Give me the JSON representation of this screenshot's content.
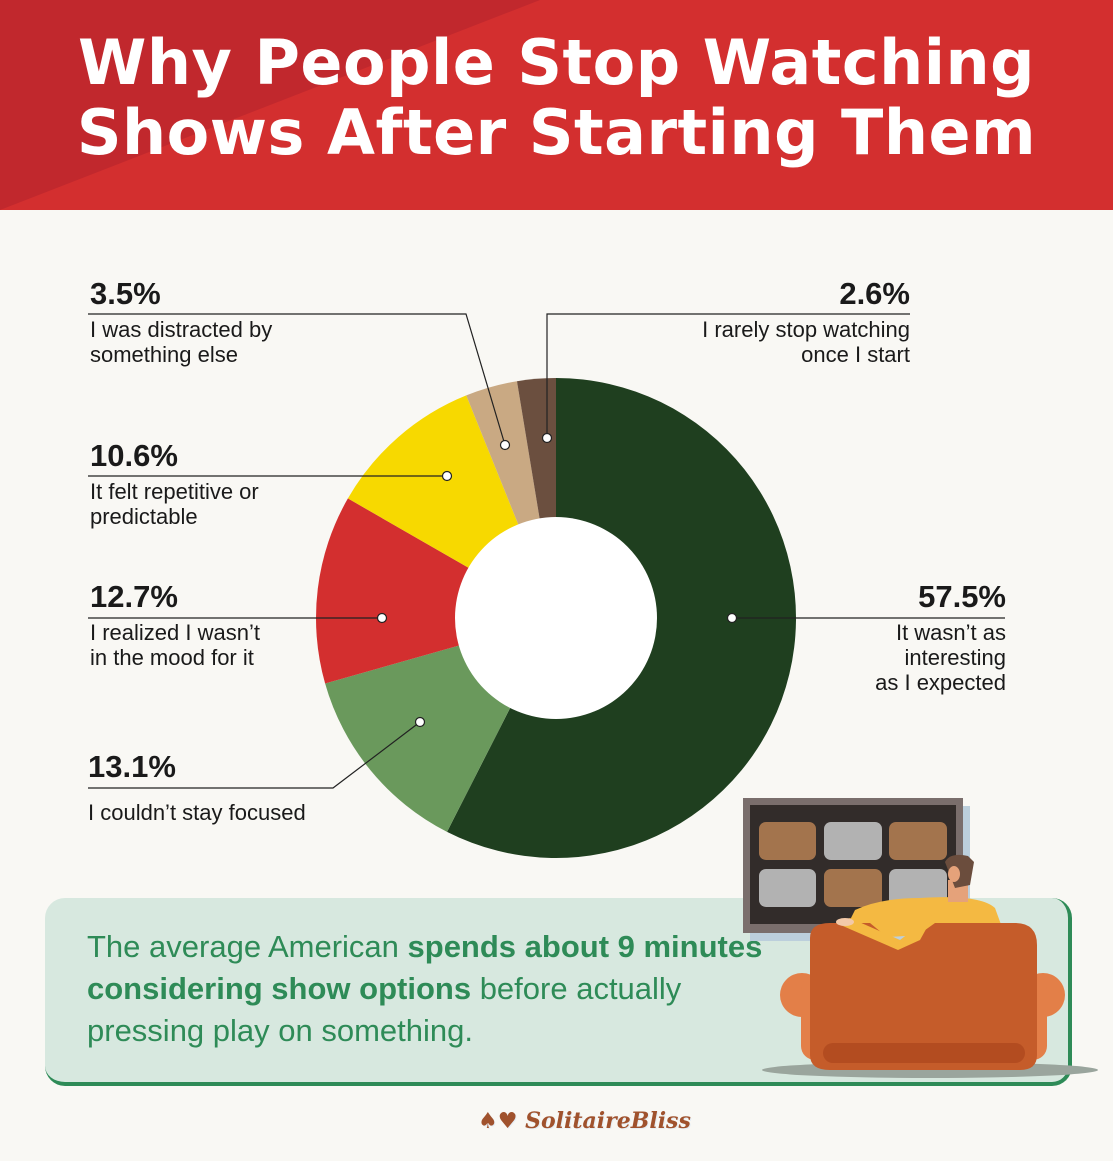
{
  "title": {
    "line1": "Why People Stop Watching",
    "line2": "Shows After Starting Them"
  },
  "chart_data": {
    "type": "pie",
    "donut": true,
    "slices": [
      {
        "label": "It wasn’t as interesting as I expected",
        "value": 57.5,
        "pct_label": "57.5%",
        "color": "#1f3f1f"
      },
      {
        "label": "I couldn’t stay focused",
        "value": 13.1,
        "pct_label": "13.1%",
        "color": "#6a995c"
      },
      {
        "label": "I realized I wasn’t in the mood for it",
        "value": 12.7,
        "pct_label": "12.7%",
        "color": "#d32f2f"
      },
      {
        "label": "It felt repetitive or predictable",
        "value": 10.6,
        "pct_label": "10.6%",
        "color": "#f7d900"
      },
      {
        "label": "I was distracted by something else",
        "value": 3.5,
        "pct_label": "3.5%",
        "color": "#c9a983"
      },
      {
        "label": "I rarely stop watching once I start",
        "value": 2.6,
        "pct_label": "2.6%",
        "color": "#6b4f3f"
      }
    ]
  },
  "labels": {
    "s0": "It wasn’t as\ninteresting\nas I expected",
    "s1": "I couldn’t stay focused",
    "s2": "I realized I wasn’t\nin the mood for it",
    "s3": "It felt repetitive or\npredictable",
    "s4": "I was distracted by\nsomething else",
    "s5": "I rarely stop watching\nonce I start"
  },
  "callout": {
    "part1": "The average American ",
    "bold": "spends about 9 minutes considering show options",
    "part2": " before actually pressing play on something."
  },
  "logo": "SolitaireBliss",
  "colors": {
    "header": "#d32f2f",
    "accent_green": "#2e8b57",
    "callout_bg": "#d7e8df"
  }
}
